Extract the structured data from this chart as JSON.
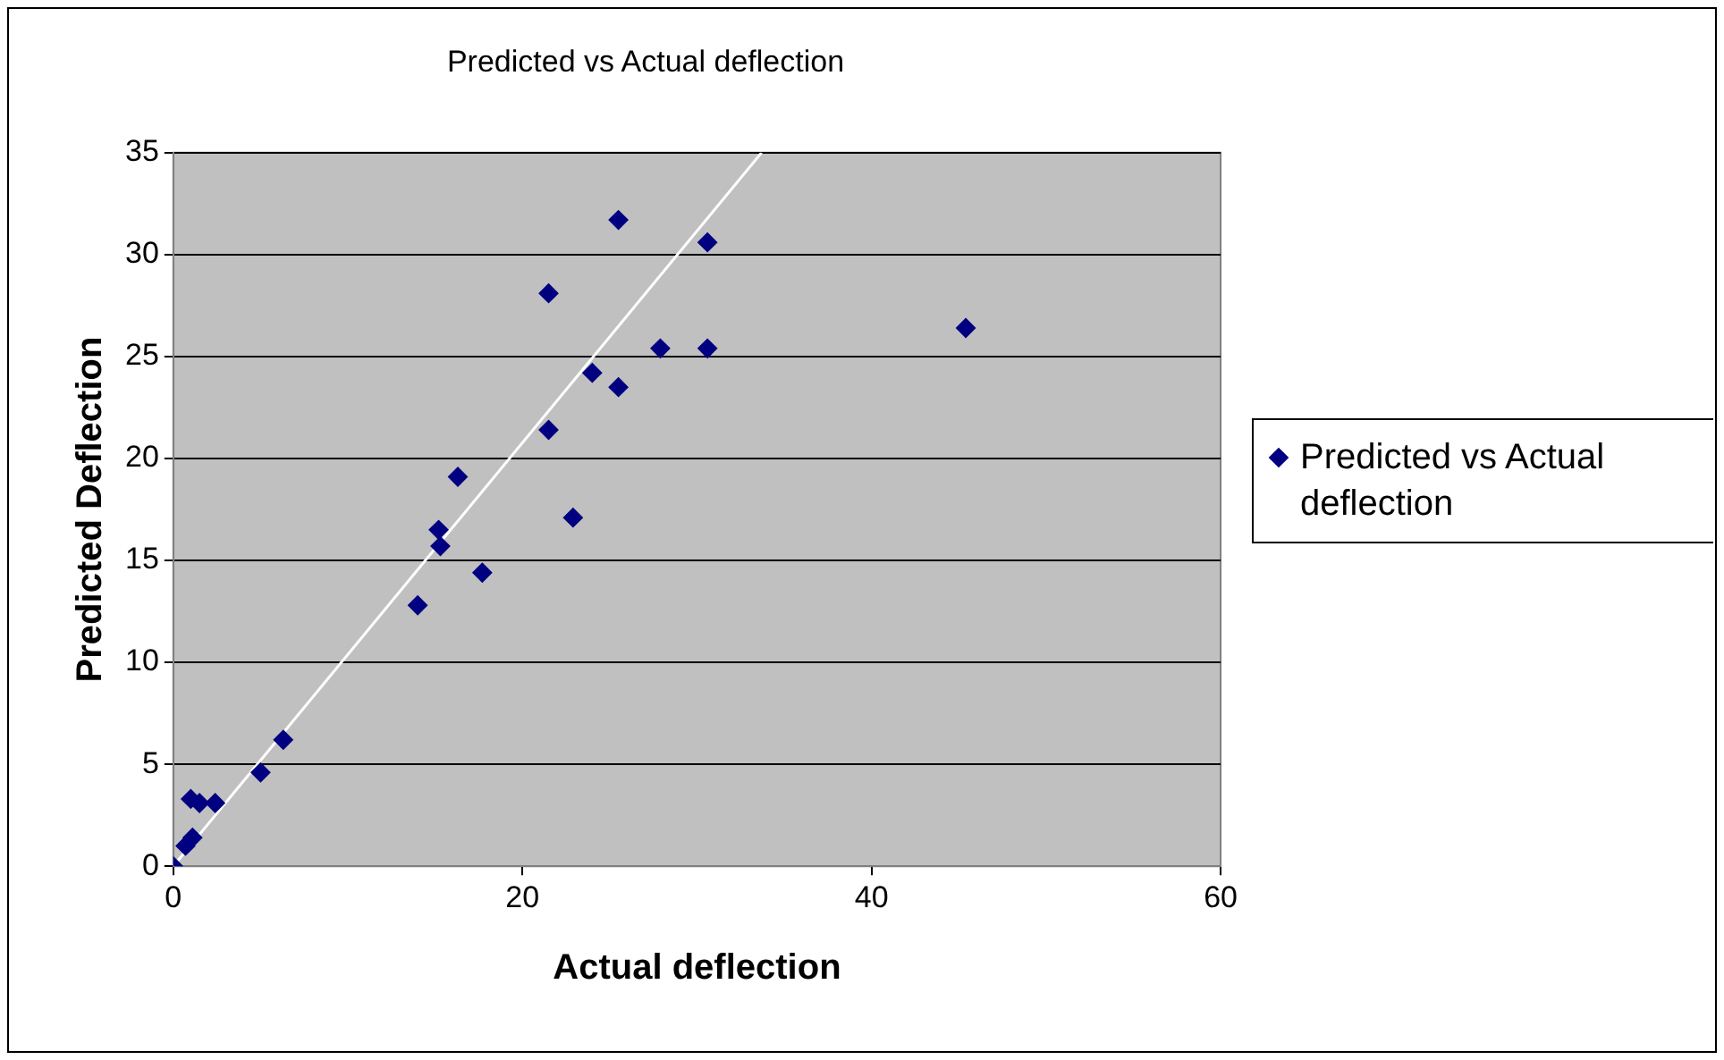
{
  "chart_data": {
    "type": "scatter",
    "title": "Predicted vs Actual deflection",
    "xlabel": "Actual deflection",
    "ylabel": "Predicted Deflection",
    "xlim": [
      0,
      60
    ],
    "xticks": [
      0,
      20,
      40,
      60
    ],
    "ylim": [
      0,
      35
    ],
    "yticks": [
      0,
      5,
      10,
      15,
      20,
      25,
      30,
      35
    ],
    "grid": "y",
    "legend": "right",
    "marker": "diamond",
    "series": [
      {
        "name": "Predicted vs Actual deflection",
        "color": "#000080",
        "x": [
          0,
          0.7,
          1.1,
          1,
          1.5,
          2.4,
          5,
          6.3,
          14,
          15.3,
          15.2,
          16.3,
          17.7,
          21.5,
          21.5,
          22.9,
          24,
          25.5,
          25.5,
          27.9,
          30.6,
          30.6,
          45.4
        ],
        "values": [
          0,
          1,
          1.4,
          3.3,
          3.1,
          3.1,
          4.6,
          6.2,
          12.8,
          15.7,
          16.5,
          19.1,
          14.4,
          21.4,
          28.1,
          17.1,
          24.2,
          23.5,
          31.7,
          25.4,
          25.4,
          30.6,
          26.4
        ]
      },
      {
        "type": "line",
        "marker": "none",
        "color": "#ffffff",
        "x": [
          0,
          33.7
        ],
        "values": [
          0,
          35
        ]
      }
    ]
  }
}
